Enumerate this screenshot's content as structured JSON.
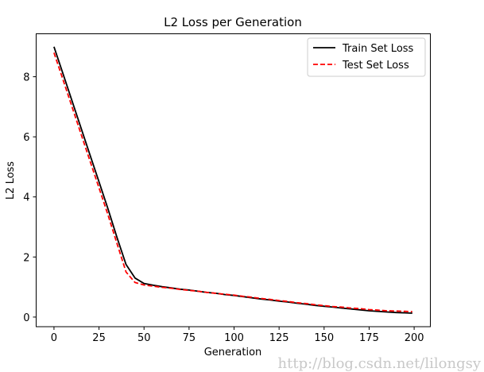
{
  "chart_data": {
    "type": "line",
    "title": "L2 Loss per Generation",
    "xlabel": "Generation",
    "ylabel": "L2 Loss",
    "xlim": [
      -9.9,
      209
    ],
    "ylim": [
      -0.32,
      9.43
    ],
    "xticks": [
      0,
      25,
      50,
      75,
      100,
      125,
      150,
      175,
      200
    ],
    "yticks": [
      0,
      2,
      4,
      6,
      8
    ],
    "grid": false,
    "legend_position": "top-right",
    "x": [
      0,
      5,
      10,
      15,
      20,
      25,
      30,
      35,
      40,
      45,
      50,
      55,
      60,
      65,
      70,
      75,
      80,
      85,
      90,
      95,
      100,
      105,
      110,
      115,
      120,
      125,
      130,
      135,
      140,
      145,
      150,
      155,
      160,
      165,
      170,
      175,
      180,
      185,
      190,
      195,
      199
    ],
    "series": [
      {
        "name": "Train Set Loss",
        "color": "#000000",
        "style": "solid",
        "values": [
          9.0,
          8.1,
          7.2,
          6.3,
          5.4,
          4.5,
          3.6,
          2.65,
          1.75,
          1.3,
          1.12,
          1.06,
          1.01,
          0.97,
          0.93,
          0.9,
          0.86,
          0.82,
          0.79,
          0.75,
          0.72,
          0.68,
          0.64,
          0.6,
          0.57,
          0.53,
          0.5,
          0.46,
          0.43,
          0.39,
          0.36,
          0.33,
          0.3,
          0.27,
          0.24,
          0.21,
          0.19,
          0.17,
          0.15,
          0.14,
          0.13
        ]
      },
      {
        "name": "Test Set Loss",
        "color": "#ff0000",
        "style": "dashed",
        "values": [
          8.8,
          7.9,
          7.0,
          6.1,
          5.2,
          4.3,
          3.4,
          2.45,
          1.5,
          1.15,
          1.07,
          1.03,
          0.99,
          0.96,
          0.92,
          0.89,
          0.86,
          0.82,
          0.79,
          0.76,
          0.73,
          0.69,
          0.66,
          0.62,
          0.59,
          0.55,
          0.52,
          0.48,
          0.45,
          0.41,
          0.38,
          0.35,
          0.33,
          0.3,
          0.28,
          0.25,
          0.23,
          0.21,
          0.2,
          0.19,
          0.18
        ]
      }
    ]
  },
  "watermark": "http://blog.csdn.net/lilongsy"
}
